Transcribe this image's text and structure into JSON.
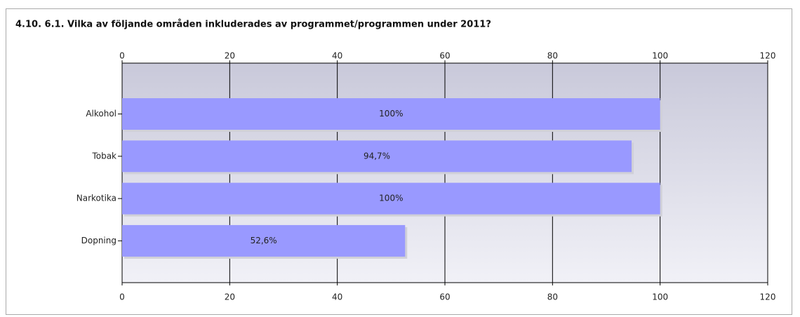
{
  "chart_data": {
    "type": "bar",
    "orientation": "horizontal",
    "title": "4.10. 6.1. Vilka av följande områden inkluderades av programmet/programmen under 2011?",
    "categories": [
      "Alkohol",
      "Tobak",
      "Narkotika",
      "Dopning"
    ],
    "values": [
      100,
      94.7,
      100,
      52.6
    ],
    "value_labels": [
      "100%",
      "94,7%",
      "100%",
      "52,6%"
    ],
    "color": "#9999ff",
    "xlim": [
      0,
      120
    ],
    "xticks": [
      0,
      20,
      40,
      60,
      80,
      100,
      120
    ],
    "grid": true
  }
}
